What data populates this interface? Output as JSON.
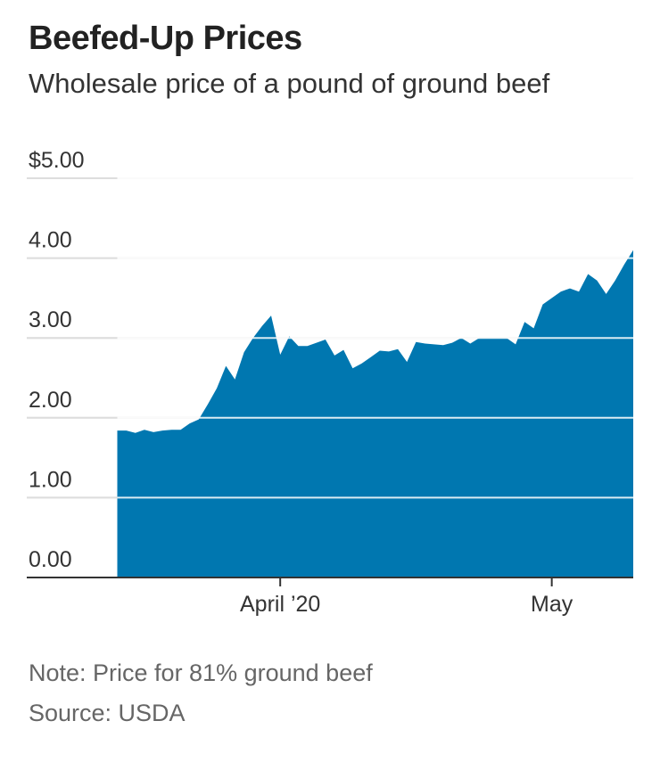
{
  "header": {
    "title": "Beefed-Up Prices",
    "subtitle": "Wholesale price of a pound of ground beef"
  },
  "footer": {
    "note": "Note: Price for 81% ground beef",
    "source": "Source: USDA"
  },
  "colors": {
    "area": "#0077b0",
    "grid": "#dddddd",
    "axis": "#333333"
  },
  "chart_data": {
    "type": "area",
    "title": "Beefed-Up Prices",
    "subtitle": "Wholesale price of a pound of ground beef",
    "xlabel": "",
    "ylabel": "",
    "ylim": [
      0,
      5
    ],
    "xlim": [
      "2020-03-04",
      "2020-05-10"
    ],
    "grid": true,
    "y_ticks": [
      {
        "value": 0,
        "label": "0.00"
      },
      {
        "value": 1,
        "label": "1.00"
      },
      {
        "value": 2,
        "label": "2.00"
      },
      {
        "value": 3,
        "label": "3.00"
      },
      {
        "value": 4,
        "label": "4.00"
      },
      {
        "value": 5,
        "label": "$5.00"
      }
    ],
    "x_ticks": [
      {
        "value": "2020-04-01",
        "label": "April ’20"
      },
      {
        "value": "2020-05-01",
        "label": "May"
      }
    ],
    "series": [
      {
        "x": [
          "2020-03-14",
          "2020-03-15",
          "2020-03-16",
          "2020-03-17",
          "2020-03-18",
          "2020-03-19",
          "2020-03-20",
          "2020-03-21",
          "2020-03-22",
          "2020-03-23",
          "2020-03-24",
          "2020-03-25",
          "2020-03-26",
          "2020-03-27",
          "2020-03-28",
          "2020-03-29",
          "2020-03-30",
          "2020-03-31",
          "2020-04-01",
          "2020-04-02",
          "2020-04-03",
          "2020-04-04",
          "2020-04-05",
          "2020-04-06",
          "2020-04-07",
          "2020-04-08",
          "2020-04-09",
          "2020-04-10",
          "2020-04-11",
          "2020-04-12",
          "2020-04-13",
          "2020-04-14",
          "2020-04-15",
          "2020-04-16",
          "2020-04-17",
          "2020-04-18",
          "2020-04-19",
          "2020-04-20",
          "2020-04-21",
          "2020-04-22",
          "2020-04-23",
          "2020-04-24",
          "2020-04-25",
          "2020-04-26",
          "2020-04-27",
          "2020-04-28",
          "2020-04-29",
          "2020-04-30",
          "2020-05-01",
          "2020-05-02",
          "2020-05-03",
          "2020-05-04",
          "2020-05-05",
          "2020-05-06",
          "2020-05-07",
          "2020-05-08",
          "2020-05-09",
          "2020-05-10"
        ],
        "values": [
          1.84,
          1.84,
          1.81,
          1.85,
          1.82,
          1.84,
          1.85,
          1.85,
          1.93,
          1.98,
          2.17,
          2.37,
          2.65,
          2.48,
          2.82,
          3.0,
          3.15,
          3.28,
          2.79,
          3.02,
          2.9,
          2.9,
          2.94,
          2.98,
          2.78,
          2.85,
          2.62,
          2.68,
          2.76,
          2.84,
          2.83,
          2.86,
          2.7,
          2.95,
          2.93,
          2.92,
          2.91,
          2.94,
          3.0,
          2.93,
          3.0,
          3.0,
          3.0,
          3.0,
          2.92,
          3.2,
          3.12,
          3.42,
          3.5,
          3.58,
          3.62,
          3.58,
          3.8,
          3.72,
          3.55,
          3.72,
          3.92,
          4.1
        ]
      }
    ]
  }
}
